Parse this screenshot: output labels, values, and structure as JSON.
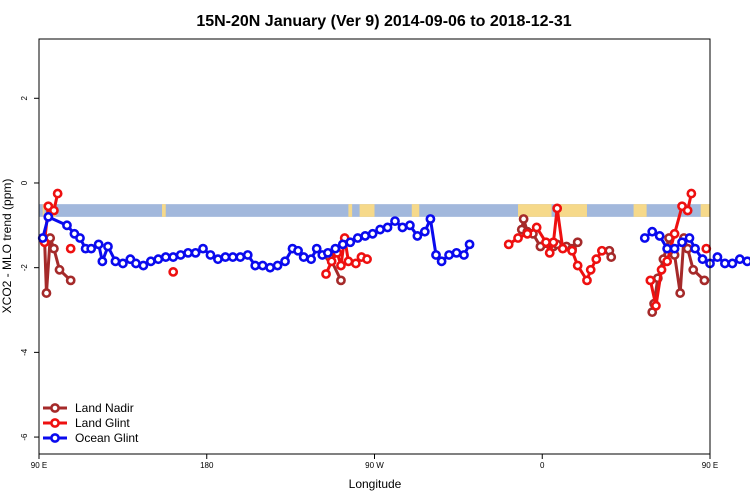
{
  "chart_data": {
    "type": "line",
    "title": "15N-20N January (Ver 9)   2014-09-06 to 2018-12-31",
    "xlabel": "Longitude",
    "ylabel": "XCO2 - MLO trend (ppm)",
    "xlim": [
      90,
      450
    ],
    "ylim": [
      -6.4,
      3.4
    ],
    "x_ticks": [
      {
        "value": 90,
        "label": "90 E"
      },
      {
        "value": 180,
        "label": "180"
      },
      {
        "value": 270,
        "label": "90 W"
      },
      {
        "value": 360,
        "label": "0"
      },
      {
        "value": 450,
        "label": "90 E"
      },
      {
        "value": 540,
        "label": "180"
      }
    ],
    "y_ticks": [
      {
        "value": 2,
        "label": "2"
      },
      {
        "value": 0,
        "label": "0"
      },
      {
        "value": -2,
        "label": "-2"
      },
      {
        "value": -4,
        "label": "-4"
      },
      {
        "value": -6,
        "label": "-6"
      }
    ],
    "grid": false,
    "legend_position": "bottom-left",
    "background_band": {
      "y_range": [
        -0.8,
        -0.5
      ],
      "ocean_color": "#a2b8dc",
      "land_color": "#f6d98a",
      "land_x_ranges": [
        [
          92,
          93
        ],
        [
          97,
          99
        ],
        [
          156,
          158
        ],
        [
          256,
          258
        ],
        [
          262,
          270
        ],
        [
          290,
          294
        ],
        [
          347,
          365
        ],
        [
          369,
          384
        ],
        [
          409,
          416
        ],
        [
          445,
          459
        ],
        [
          466,
          475
        ]
      ]
    },
    "series": [
      {
        "name": "Land Nadir",
        "color": "#a52a2a",
        "segments": [
          [
            [
              93,
              -1.35
            ],
            [
              94,
              -2.6
            ],
            [
              96,
              -1.3
            ],
            [
              98,
              -1.55
            ],
            [
              101,
              -2.05
            ],
            [
              107,
              -2.3
            ]
          ],
          [
            [
              246,
              -1.75
            ],
            [
              252,
              -2.3
            ]
          ],
          [
            [
              349,
              -1.1
            ],
            [
              350,
              -0.85
            ],
            [
              352,
              -1.15
            ],
            [
              355,
              -1.2
            ],
            [
              359,
              -1.5
            ],
            [
              366,
              -1.5
            ],
            [
              368,
              -1.45
            ],
            [
              373,
              -1.5
            ],
            [
              376,
              -1.55
            ],
            [
              379,
              -1.4
            ]
          ],
          [
            [
              396,
              -1.6
            ],
            [
              397,
              -1.75
            ]
          ],
          [
            [
              419,
              -3.05
            ],
            [
              420,
              -2.85
            ],
            [
              422,
              -2.25
            ],
            [
              425,
              -1.8
            ],
            [
              428,
              -1.3
            ],
            [
              431,
              -1.7
            ],
            [
              434,
              -2.6
            ],
            [
              436,
              -1.3
            ],
            [
              438,
              -1.55
            ],
            [
              441,
              -2.05
            ],
            [
              447,
              -2.3
            ]
          ]
        ]
      },
      {
        "name": "Land Glint",
        "color": "#ee1010",
        "segments": [
          [
            [
              93,
              -1.4
            ],
            [
              95,
              -0.55
            ],
            [
              98,
              -0.65
            ],
            [
              100,
              -0.25
            ]
          ],
          [
            [
              107,
              -1.55
            ]
          ],
          [
            [
              162,
              -2.1
            ]
          ],
          [
            [
              244,
              -2.15
            ],
            [
              247,
              -1.85
            ],
            [
              250,
              -1.65
            ],
            [
              252,
              -1.95
            ],
            [
              254,
              -1.3
            ],
            [
              256,
              -1.85
            ]
          ],
          [
            [
              260,
              -1.9
            ],
            [
              263,
              -1.75
            ],
            [
              266,
              -1.8
            ]
          ],
          [
            [
              342,
              -1.45
            ],
            [
              347,
              -1.3
            ],
            [
              352,
              -1.2
            ],
            [
              357,
              -1.05
            ],
            [
              362,
              -1.4
            ],
            [
              364,
              -1.65
            ],
            [
              366,
              -1.4
            ],
            [
              368,
              -0.6
            ],
            [
              371,
              -1.55
            ],
            [
              376,
              -1.6
            ],
            [
              379,
              -1.95
            ],
            [
              384,
              -2.3
            ],
            [
              386,
              -2.05
            ],
            [
              389,
              -1.8
            ],
            [
              392,
              -1.6
            ]
          ],
          [
            [
              418,
              -2.3
            ],
            [
              421,
              -2.9
            ],
            [
              424,
              -2.05
            ],
            [
              427,
              -1.85
            ],
            [
              431,
              -1.2
            ],
            [
              435,
              -0.55
            ],
            [
              438,
              -0.65
            ],
            [
              440,
              -0.25
            ]
          ],
          [
            [
              448,
              -1.55
            ]
          ]
        ]
      },
      {
        "name": "Ocean Glint",
        "color": "#0a0aee",
        "segments": [
          [
            [
              92,
              -1.3
            ],
            [
              95,
              -0.8
            ],
            [
              105,
              -1.0
            ],
            [
              109,
              -1.2
            ],
            [
              112,
              -1.3
            ],
            [
              115,
              -1.55
            ],
            [
              118,
              -1.55
            ],
            [
              122,
              -1.45
            ],
            [
              124,
              -1.85
            ],
            [
              127,
              -1.5
            ],
            [
              131,
              -1.85
            ],
            [
              135,
              -1.9
            ],
            [
              139,
              -1.8
            ],
            [
              142,
              -1.9
            ],
            [
              146,
              -1.95
            ],
            [
              150,
              -1.85
            ],
            [
              154,
              -1.8
            ],
            [
              158,
              -1.75
            ],
            [
              162,
              -1.75
            ],
            [
              166,
              -1.7
            ],
            [
              170,
              -1.65
            ],
            [
              174,
              -1.65
            ],
            [
              178,
              -1.55
            ],
            [
              182,
              -1.7
            ],
            [
              186,
              -1.8
            ],
            [
              190,
              -1.75
            ],
            [
              194,
              -1.75
            ],
            [
              198,
              -1.75
            ],
            [
              202,
              -1.7
            ],
            [
              206,
              -1.95
            ],
            [
              210,
              -1.95
            ],
            [
              214,
              -2.0
            ],
            [
              218,
              -1.95
            ],
            [
              222,
              -1.85
            ],
            [
              226,
              -1.55
            ],
            [
              229,
              -1.6
            ],
            [
              232,
              -1.75
            ],
            [
              236,
              -1.8
            ],
            [
              239,
              -1.55
            ],
            [
              242,
              -1.7
            ],
            [
              245,
              -1.65
            ],
            [
              249,
              -1.55
            ],
            [
              253,
              -1.45
            ],
            [
              257,
              -1.4
            ],
            [
              261,
              -1.3
            ],
            [
              265,
              -1.25
            ],
            [
              269,
              -1.2
            ],
            [
              273,
              -1.1
            ],
            [
              277,
              -1.05
            ],
            [
              281,
              -0.9
            ],
            [
              285,
              -1.05
            ],
            [
              289,
              -1.0
            ],
            [
              293,
              -1.25
            ],
            [
              297,
              -1.15
            ],
            [
              300,
              -0.85
            ],
            [
              303,
              -1.7
            ]
          ],
          [
            [
              306,
              -1.85
            ],
            [
              310,
              -1.7
            ],
            [
              314,
              -1.65
            ],
            [
              318,
              -1.7
            ],
            [
              321,
              -1.45
            ]
          ],
          [
            [
              415,
              -1.3
            ],
            [
              419,
              -1.15
            ],
            [
              423,
              -1.25
            ],
            [
              427,
              -1.55
            ],
            [
              431,
              -1.55
            ],
            [
              435,
              -1.4
            ],
            [
              439,
              -1.3
            ],
            [
              442,
              -1.55
            ],
            [
              446,
              -1.8
            ],
            [
              450,
              -1.9
            ],
            [
              454,
              -1.75
            ],
            [
              458,
              -1.9
            ],
            [
              462,
              -1.9
            ],
            [
              466,
              -1.8
            ],
            [
              470,
              -1.85
            ],
            [
              474,
              -1.75
            ]
          ]
        ]
      }
    ]
  }
}
